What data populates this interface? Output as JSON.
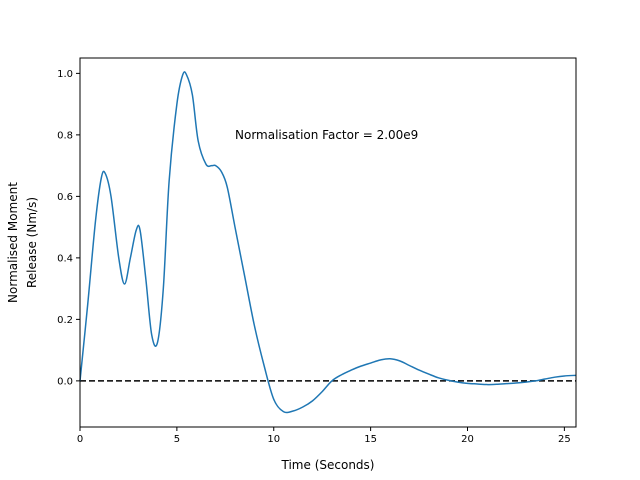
{
  "chart_data": {
    "type": "line",
    "xlabel": "Time (Seconds)",
    "ylabel_lines": [
      "Normalised Moment",
      "Release (Nm/s)"
    ],
    "xlim": [
      0,
      25.6
    ],
    "ylim": [
      -0.15,
      1.05
    ],
    "x_ticks": [
      0,
      5,
      10,
      15,
      20,
      25
    ],
    "y_ticks": [
      0.0,
      0.2,
      0.4,
      0.6,
      0.8,
      1.0
    ],
    "x_tick_labels": [
      "0",
      "5",
      "10",
      "15",
      "20",
      "25"
    ],
    "y_tick_labels": [
      "0.0",
      "0.2",
      "0.4",
      "0.6",
      "0.8",
      "1.0"
    ],
    "grid": false,
    "annotation": {
      "text": "Normalisation Factor = 2.00e9",
      "x": 8.0,
      "y": 0.8
    },
    "reference_line": {
      "y": 0.0,
      "style": "dashed",
      "color": "#000000"
    },
    "series": [
      {
        "color": "#1f77b4",
        "x": [
          0,
          0.4,
          0.8,
          1.1,
          1.3,
          1.6,
          2.0,
          2.3,
          2.6,
          2.9,
          3.1,
          3.4,
          3.7,
          4.0,
          4.3,
          4.6,
          5.0,
          5.3,
          5.5,
          5.8,
          6.1,
          6.5,
          6.8,
          7.0,
          7.3,
          7.6,
          8.0,
          8.5,
          9.0,
          9.5,
          10.0,
          10.5,
          11.0,
          11.5,
          12.0,
          12.5,
          13.0,
          13.5,
          14.0,
          14.5,
          15.0,
          15.5,
          16.0,
          16.5,
          17.0,
          17.5,
          18.0,
          18.5,
          19.0,
          19.5,
          20.0,
          20.5,
          21.0,
          21.5,
          22.0,
          22.5,
          23.0,
          23.5,
          24.0,
          24.5,
          25.0,
          25.6
        ],
        "y": [
          0.0,
          0.25,
          0.52,
          0.66,
          0.675,
          0.6,
          0.4,
          0.315,
          0.4,
          0.49,
          0.49,
          0.33,
          0.15,
          0.125,
          0.3,
          0.65,
          0.9,
          0.995,
          0.995,
          0.93,
          0.78,
          0.705,
          0.7,
          0.7,
          0.68,
          0.63,
          0.5,
          0.34,
          0.18,
          0.05,
          -0.06,
          -0.1,
          -0.098,
          -0.085,
          -0.065,
          -0.035,
          0.0,
          0.02,
          0.035,
          0.048,
          0.058,
          0.068,
          0.072,
          0.065,
          0.05,
          0.035,
          0.022,
          0.01,
          0.002,
          -0.004,
          -0.008,
          -0.01,
          -0.012,
          -0.011,
          -0.009,
          -0.007,
          -0.004,
          0.0,
          0.006,
          0.012,
          0.016,
          0.018
        ]
      }
    ]
  }
}
